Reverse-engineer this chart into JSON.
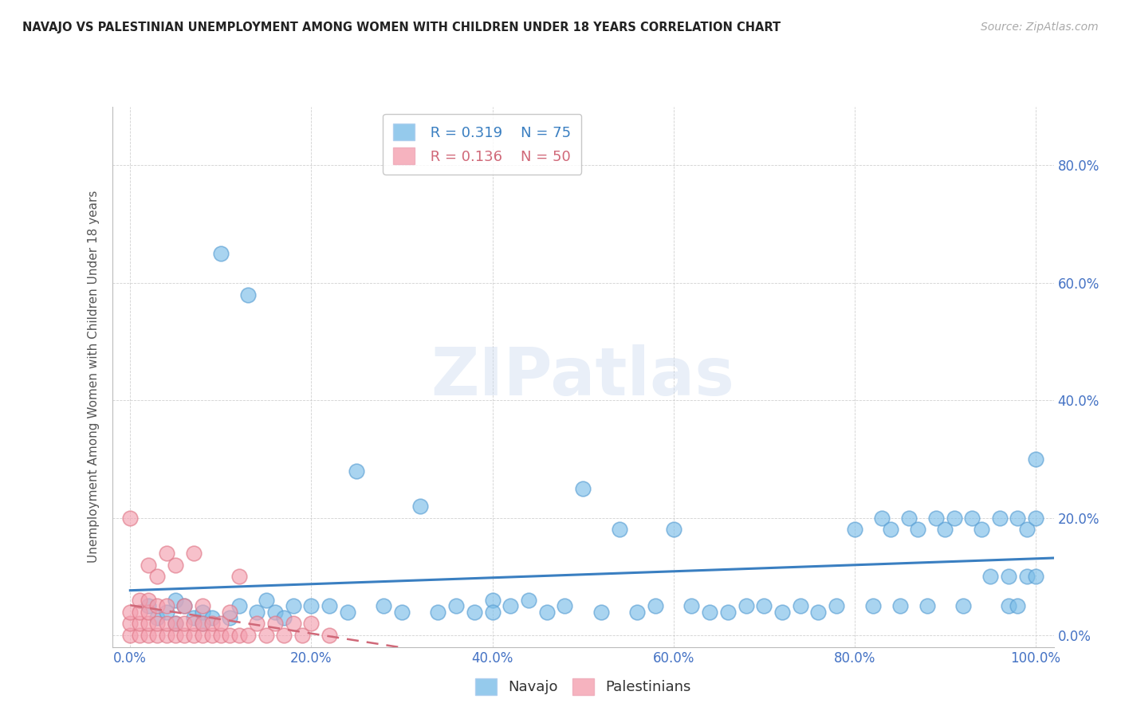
{
  "title": "NAVAJO VS PALESTINIAN UNEMPLOYMENT AMONG WOMEN WITH CHILDREN UNDER 18 YEARS CORRELATION CHART",
  "source": "Source: ZipAtlas.com",
  "ylabel": "Unemployment Among Women with Children Under 18 years",
  "xlim": [
    -0.02,
    1.02
  ],
  "ylim": [
    -0.02,
    0.9
  ],
  "xticks": [
    0.0,
    0.2,
    0.4,
    0.6,
    0.8,
    1.0
  ],
  "yticks": [
    0.0,
    0.2,
    0.4,
    0.6,
    0.8
  ],
  "xticklabels": [
    "0.0%",
    "20.0%",
    "40.0%",
    "60.0%",
    "80.0%",
    "100.0%"
  ],
  "yticklabels": [
    "0.0%",
    "20.0%",
    "40.0%",
    "60.0%",
    "80.0%"
  ],
  "legend_r_navajo": "R = 0.319",
  "legend_n_navajo": "N = 75",
  "legend_r_palestinian": "R = 0.136",
  "legend_n_palestinian": "N = 50",
  "navajo_color": "#7bbde8",
  "palestinian_color": "#f4a0b0",
  "navajo_edge_color": "#5a9fd4",
  "palestinian_edge_color": "#e07888",
  "navajo_line_color": "#3a7fc1",
  "palestinian_line_color": "#d06878",
  "background_color": "#ffffff",
  "navajo_x": [
    0.02,
    0.03,
    0.04,
    0.05,
    0.05,
    0.06,
    0.07,
    0.08,
    0.08,
    0.09,
    0.1,
    0.11,
    0.12,
    0.13,
    0.14,
    0.15,
    0.16,
    0.17,
    0.18,
    0.2,
    0.22,
    0.24,
    0.25,
    0.28,
    0.3,
    0.32,
    0.34,
    0.36,
    0.38,
    0.4,
    0.4,
    0.42,
    0.44,
    0.46,
    0.48,
    0.5,
    0.52,
    0.54,
    0.56,
    0.58,
    0.6,
    0.62,
    0.64,
    0.66,
    0.68,
    0.7,
    0.72,
    0.74,
    0.76,
    0.78,
    0.8,
    0.82,
    0.83,
    0.84,
    0.85,
    0.86,
    0.87,
    0.88,
    0.89,
    0.9,
    0.91,
    0.92,
    0.93,
    0.94,
    0.95,
    0.96,
    0.97,
    0.97,
    0.98,
    0.98,
    0.99,
    0.99,
    1.0,
    1.0,
    1.0
  ],
  "navajo_y": [
    0.05,
    0.03,
    0.04,
    0.06,
    0.02,
    0.05,
    0.03,
    0.04,
    0.02,
    0.03,
    0.65,
    0.03,
    0.05,
    0.58,
    0.04,
    0.06,
    0.04,
    0.03,
    0.05,
    0.05,
    0.05,
    0.04,
    0.28,
    0.05,
    0.04,
    0.22,
    0.04,
    0.05,
    0.04,
    0.06,
    0.04,
    0.05,
    0.06,
    0.04,
    0.05,
    0.25,
    0.04,
    0.18,
    0.04,
    0.05,
    0.18,
    0.05,
    0.04,
    0.04,
    0.05,
    0.05,
    0.04,
    0.05,
    0.04,
    0.05,
    0.18,
    0.05,
    0.2,
    0.18,
    0.05,
    0.2,
    0.18,
    0.05,
    0.2,
    0.18,
    0.2,
    0.05,
    0.2,
    0.18,
    0.1,
    0.2,
    0.1,
    0.05,
    0.2,
    0.05,
    0.18,
    0.1,
    0.3,
    0.2,
    0.1
  ],
  "palestinian_x": [
    0.0,
    0.0,
    0.0,
    0.0,
    0.01,
    0.01,
    0.01,
    0.01,
    0.02,
    0.02,
    0.02,
    0.02,
    0.02,
    0.03,
    0.03,
    0.03,
    0.03,
    0.04,
    0.04,
    0.04,
    0.04,
    0.05,
    0.05,
    0.05,
    0.06,
    0.06,
    0.06,
    0.07,
    0.07,
    0.07,
    0.08,
    0.08,
    0.08,
    0.09,
    0.09,
    0.1,
    0.1,
    0.11,
    0.11,
    0.12,
    0.12,
    0.13,
    0.14,
    0.15,
    0.16,
    0.17,
    0.18,
    0.19,
    0.2,
    0.22
  ],
  "palestinian_y": [
    0.0,
    0.02,
    0.04,
    0.2,
    0.0,
    0.02,
    0.04,
    0.06,
    0.0,
    0.02,
    0.04,
    0.06,
    0.12,
    0.0,
    0.02,
    0.05,
    0.1,
    0.0,
    0.02,
    0.05,
    0.14,
    0.0,
    0.02,
    0.12,
    0.0,
    0.02,
    0.05,
    0.0,
    0.02,
    0.14,
    0.0,
    0.02,
    0.05,
    0.0,
    0.02,
    0.0,
    0.02,
    0.0,
    0.04,
    0.0,
    0.1,
    0.0,
    0.02,
    0.0,
    0.02,
    0.0,
    0.02,
    0.0,
    0.02,
    0.0
  ]
}
